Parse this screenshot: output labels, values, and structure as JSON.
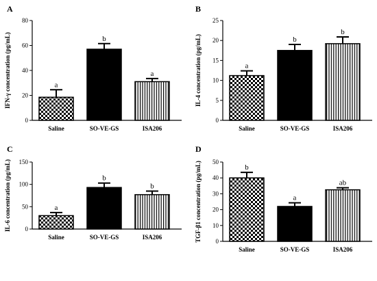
{
  "chart_data": [
    {
      "type": "bar",
      "panel": "A",
      "categories": [
        "Saline",
        "SO-VE-GS",
        "ISA206"
      ],
      "values": [
        18.5,
        57,
        31
      ],
      "errors": [
        6,
        4.5,
        2.5
      ],
      "significance": [
        "a",
        "b",
        "a"
      ],
      "patterns": [
        "checker",
        "solid",
        "vstripe"
      ],
      "ylabel": "IFN-γ concentration (pg/mL)",
      "ylim": [
        0,
        80
      ],
      "yticks": [
        0,
        20,
        40,
        60,
        80
      ]
    },
    {
      "type": "bar",
      "panel": "B",
      "categories": [
        "Saline",
        "SO-VE-GS",
        "ISA206"
      ],
      "values": [
        11.2,
        17.5,
        19.2
      ],
      "errors": [
        1.2,
        1.5,
        1.7
      ],
      "significance": [
        "a",
        "b",
        "b"
      ],
      "patterns": [
        "checker",
        "solid",
        "vstripe"
      ],
      "ylabel": "IL-4 concentration (pg/mL)",
      "ylim": [
        0,
        25
      ],
      "yticks": [
        0,
        5,
        10,
        15,
        20,
        25
      ]
    },
    {
      "type": "bar",
      "panel": "C",
      "categories": [
        "Saline",
        "SO-VE-GS",
        "ISA206"
      ],
      "values": [
        30,
        93,
        77
      ],
      "errors": [
        7,
        10,
        8
      ],
      "significance": [
        "a",
        "b",
        "b"
      ],
      "patterns": [
        "checker",
        "solid",
        "vstripe"
      ],
      "ylabel": "IL-6 concentration (pg/mL)",
      "ylim": [
        0,
        150
      ],
      "yticks": [
        0,
        50,
        100,
        150
      ]
    },
    {
      "type": "bar",
      "panel": "D",
      "categories": [
        "Saline",
        "SO-VE-GS",
        "ISA206"
      ],
      "values": [
        40,
        22,
        32.5
      ],
      "errors": [
        3.5,
        2.3,
        1.3
      ],
      "significance": [
        "b",
        "a",
        "ab"
      ],
      "patterns": [
        "checker",
        "solid",
        "vstripe"
      ],
      "ylabel": "TGF-β1 concentration (pg/mL)",
      "ylim": [
        0,
        50
      ],
      "yticks": [
        0,
        10,
        20,
        30,
        40,
        50
      ]
    }
  ]
}
